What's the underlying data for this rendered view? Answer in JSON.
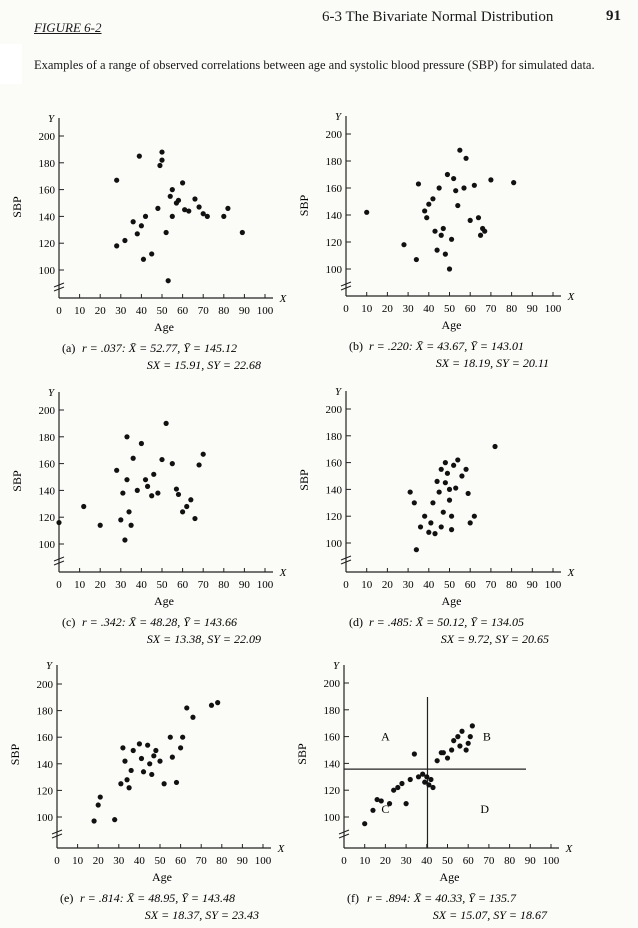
{
  "header": {
    "figure_label": "FIGURE 6-2",
    "running_head": "6-3  The Bivariate Normal Distribution",
    "page_number": "91",
    "caption": "Examples of a range of observed correlations between age and systolic blood pressure (SBP) for simulated data."
  },
  "chart_data": [
    {
      "type": "scatter",
      "label": "(a)",
      "stats1": "r = .037:  X̄ = 52.77, Ȳ = 145.12",
      "stats2": "SX = 15.91, SY = 22.68",
      "xlabel": "Age",
      "ylabel": "SBP",
      "x_axis_letter": "X",
      "y_axis_letter": "Y",
      "xlim": [
        0,
        100
      ],
      "ylim": [
        100,
        200
      ],
      "xticks": [
        "0",
        "10",
        "20",
        "30",
        "40",
        "50",
        "60",
        "70",
        "80",
        "90",
        "100"
      ],
      "yticks": [
        "100",
        "120",
        "140",
        "160",
        "180",
        "200"
      ],
      "points": [
        [
          28,
          167
        ],
        [
          28,
          118
        ],
        [
          32,
          122
        ],
        [
          36,
          136
        ],
        [
          38,
          127
        ],
        [
          39,
          185
        ],
        [
          40,
          133
        ],
        [
          41,
          108
        ],
        [
          42,
          140
        ],
        [
          45,
          112
        ],
        [
          48,
          146
        ],
        [
          49,
          178
        ],
        [
          50,
          188
        ],
        [
          50,
          182
        ],
        [
          52,
          128
        ],
        [
          53,
          92
        ],
        [
          54,
          155
        ],
        [
          55,
          160
        ],
        [
          55,
          140
        ],
        [
          57,
          150
        ],
        [
          58,
          152
        ],
        [
          60,
          165
        ],
        [
          61,
          145
        ],
        [
          63,
          144
        ],
        [
          66,
          153
        ],
        [
          68,
          147
        ],
        [
          70,
          142
        ],
        [
          72,
          140
        ],
        [
          80,
          140
        ],
        [
          82,
          146
        ],
        [
          89,
          128
        ]
      ],
      "quadrants": null
    },
    {
      "type": "scatter",
      "label": "(b)",
      "stats1": "r = .220:  X̄ = 43.67, Ȳ = 143.01",
      "stats2": "SX = 18.19, SY = 20.11",
      "xlabel": "Age",
      "ylabel": "SBP",
      "x_axis_letter": "X",
      "y_axis_letter": "Y",
      "xlim": [
        0,
        100
      ],
      "ylim": [
        100,
        200
      ],
      "xticks": [
        "0",
        "10",
        "20",
        "30",
        "40",
        "50",
        "60",
        "70",
        "80",
        "90",
        "100"
      ],
      "yticks": [
        "100",
        "120",
        "140",
        "160",
        "180",
        "200"
      ],
      "points": [
        [
          10,
          142
        ],
        [
          28,
          118
        ],
        [
          34,
          107
        ],
        [
          35,
          163
        ],
        [
          38,
          143
        ],
        [
          39,
          138
        ],
        [
          40,
          148
        ],
        [
          42,
          152
        ],
        [
          43,
          128
        ],
        [
          44,
          114
        ],
        [
          45,
          160
        ],
        [
          46,
          125
        ],
        [
          47,
          130
        ],
        [
          48,
          111
        ],
        [
          49,
          170
        ],
        [
          50,
          100
        ],
        [
          51,
          122
        ],
        [
          52,
          167
        ],
        [
          53,
          158
        ],
        [
          54,
          147
        ],
        [
          55,
          188
        ],
        [
          57,
          160
        ],
        [
          58,
          182
        ],
        [
          60,
          136
        ],
        [
          62,
          162
        ],
        [
          64,
          138
        ],
        [
          65,
          125
        ],
        [
          66,
          130
        ],
        [
          67,
          128
        ],
        [
          70,
          166
        ],
        [
          81,
          164
        ]
      ],
      "quadrants": null
    },
    {
      "type": "scatter",
      "label": "(c)",
      "stats1": "r = .342:  X̄ = 48.28, Ȳ = 143.66",
      "stats2": "SX = 13.38, SY = 22.09",
      "xlabel": "Age",
      "ylabel": "SBP",
      "x_axis_letter": "X",
      "y_axis_letter": "Y",
      "xlim": [
        0,
        100
      ],
      "ylim": [
        100,
        200
      ],
      "xticks": [
        "0",
        "10",
        "20",
        "30",
        "40",
        "50",
        "60",
        "70",
        "80",
        "90",
        "100"
      ],
      "yticks": [
        "100",
        "120",
        "140",
        "160",
        "180",
        "200"
      ],
      "points": [
        [
          0,
          116
        ],
        [
          12,
          128
        ],
        [
          20,
          114
        ],
        [
          28,
          155
        ],
        [
          30,
          118
        ],
        [
          31,
          138
        ],
        [
          32,
          103
        ],
        [
          33,
          148
        ],
        [
          33,
          180
        ],
        [
          34,
          124
        ],
        [
          35,
          114
        ],
        [
          36,
          164
        ],
        [
          38,
          140
        ],
        [
          40,
          175
        ],
        [
          42,
          148
        ],
        [
          43,
          143
        ],
        [
          45,
          136
        ],
        [
          46,
          152
        ],
        [
          48,
          138
        ],
        [
          50,
          163
        ],
        [
          52,
          190
        ],
        [
          55,
          160
        ],
        [
          57,
          141
        ],
        [
          58,
          137
        ],
        [
          60,
          124
        ],
        [
          62,
          128
        ],
        [
          64,
          133
        ],
        [
          66,
          119
        ],
        [
          68,
          159
        ],
        [
          70,
          167
        ]
      ],
      "quadrants": null
    },
    {
      "type": "scatter",
      "label": "(d)",
      "stats1": "r = .485:  X̄ = 50.12, Ȳ = 134.05",
      "stats2": "SX = 9.72, SY = 20.65",
      "xlabel": "Age",
      "ylabel": "SBP",
      "x_axis_letter": "X",
      "y_axis_letter": "Y",
      "xlim": [
        0,
        100
      ],
      "ylim": [
        100,
        200
      ],
      "xticks": [
        "0",
        "10",
        "20",
        "30",
        "40",
        "50",
        "60",
        "70",
        "80",
        "90",
        "100"
      ],
      "yticks": [
        "100",
        "120",
        "140",
        "160",
        "180",
        "200"
      ],
      "points": [
        [
          31,
          138
        ],
        [
          33,
          130
        ],
        [
          34,
          95
        ],
        [
          36,
          112
        ],
        [
          38,
          120
        ],
        [
          40,
          108
        ],
        [
          41,
          115
        ],
        [
          42,
          130
        ],
        [
          43,
          107
        ],
        [
          44,
          146
        ],
        [
          45,
          138
        ],
        [
          46,
          155
        ],
        [
          46,
          112
        ],
        [
          47,
          123
        ],
        [
          48,
          160
        ],
        [
          48,
          145
        ],
        [
          49,
          152
        ],
        [
          50,
          140
        ],
        [
          50,
          132
        ],
        [
          51,
          120
        ],
        [
          51,
          110
        ],
        [
          52,
          158
        ],
        [
          53,
          141
        ],
        [
          54,
          162
        ],
        [
          56,
          150
        ],
        [
          58,
          155
        ],
        [
          59,
          137
        ],
        [
          60,
          115
        ],
        [
          62,
          120
        ],
        [
          72,
          172
        ]
      ],
      "quadrants": null
    },
    {
      "type": "scatter",
      "label": "(e)",
      "stats1": "r = .814:  X̄ = 48.95, Ȳ = 143.48",
      "stats2": "SX = 18.37, SY = 23.43",
      "xlabel": "Age",
      "ylabel": "SBP",
      "x_axis_letter": "X",
      "y_axis_letter": "Y",
      "xlim": [
        0,
        100
      ],
      "ylim": [
        100,
        200
      ],
      "xticks": [
        "0",
        "10",
        "20",
        "30",
        "40",
        "50",
        "60",
        "70",
        "80",
        "90",
        "100"
      ],
      "yticks": [
        "100",
        "120",
        "140",
        "160",
        "180",
        "200"
      ],
      "points": [
        [
          18,
          97
        ],
        [
          20,
          109
        ],
        [
          21,
          115
        ],
        [
          28,
          98
        ],
        [
          31,
          125
        ],
        [
          32,
          152
        ],
        [
          33,
          142
        ],
        [
          34,
          128
        ],
        [
          35,
          122
        ],
        [
          36,
          135
        ],
        [
          37,
          150
        ],
        [
          40,
          155
        ],
        [
          41,
          144
        ],
        [
          42,
          134
        ],
        [
          44,
          154
        ],
        [
          45,
          140
        ],
        [
          46,
          132
        ],
        [
          47,
          146
        ],
        [
          48,
          150
        ],
        [
          50,
          142
        ],
        [
          52,
          125
        ],
        [
          55,
          160
        ],
        [
          56,
          145
        ],
        [
          58,
          126
        ],
        [
          60,
          152
        ],
        [
          61,
          160
        ],
        [
          63,
          182
        ],
        [
          66,
          175
        ],
        [
          75,
          184
        ],
        [
          78,
          186
        ]
      ],
      "quadrants": null
    },
    {
      "type": "scatter",
      "label": "(f)",
      "stats1": "r = .894:  X̄ = 40.33, Ȳ = 135.7",
      "stats2": "SX = 15.07, SY = 18.67",
      "xlabel": "Age",
      "ylabel": "SBP",
      "x_axis_letter": "X",
      "y_axis_letter": "Y",
      "xlim": [
        0,
        100
      ],
      "ylim": [
        100,
        200
      ],
      "xticks": [
        "0",
        "10",
        "20",
        "30",
        "40",
        "50",
        "60",
        "70",
        "80",
        "90",
        "100"
      ],
      "yticks": [
        "100",
        "120",
        "140",
        "160",
        "180",
        "200"
      ],
      "points": [
        [
          10,
          95
        ],
        [
          14,
          105
        ],
        [
          16,
          113
        ],
        [
          18,
          112
        ],
        [
          22,
          110
        ],
        [
          24,
          120
        ],
        [
          26,
          122
        ],
        [
          28,
          125
        ],
        [
          30,
          110
        ],
        [
          32,
          128
        ],
        [
          34,
          147
        ],
        [
          36,
          130
        ],
        [
          38,
          132
        ],
        [
          39,
          126
        ],
        [
          40,
          130
        ],
        [
          41,
          124
        ],
        [
          42,
          128
        ],
        [
          43,
          122
        ],
        [
          45,
          142
        ],
        [
          47,
          148
        ],
        [
          48,
          148
        ],
        [
          50,
          144
        ],
        [
          52,
          150
        ],
        [
          53,
          157
        ],
        [
          55,
          160
        ],
        [
          56,
          153
        ],
        [
          57,
          164
        ],
        [
          59,
          150
        ],
        [
          60,
          155
        ],
        [
          61,
          160
        ],
        [
          62,
          168
        ]
      ],
      "quadrants": {
        "x_mean": 40.33,
        "y_mean": 135.7,
        "labels": [
          "A",
          "B",
          "C",
          "D"
        ]
      }
    }
  ]
}
